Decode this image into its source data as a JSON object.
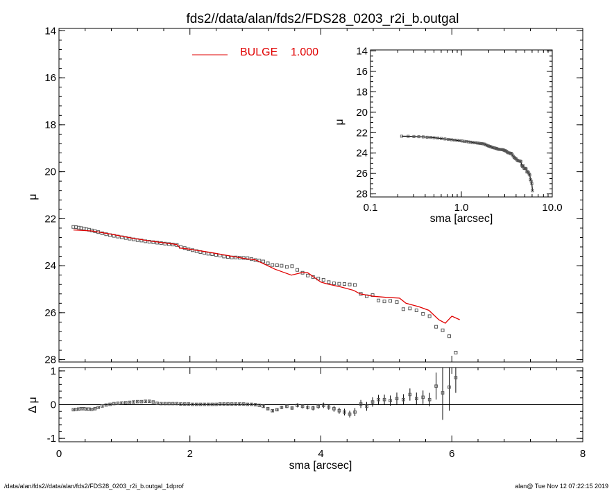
{
  "colors": {
    "model": "#e00000",
    "data": "#555555",
    "axes": "#000000"
  },
  "title": "fds2//data/alan/fds2/FDS28_0203_r2i_b.outgal",
  "legend": {
    "label": "BULGE",
    "value": "1.000"
  },
  "footer": {
    "left": "/data/alan/fds2//data/alan/fds2/FDS28_0203_r2i_b.outgal_1dprof",
    "right": "alan@  Tue Nov 12 07:22:15 2019"
  },
  "chart_data": [
    {
      "id": "main",
      "type": "scatter",
      "ylabel": "μ",
      "xlim": [
        0,
        8
      ],
      "ylim": [
        28.1,
        13.9
      ],
      "y_inverted": true,
      "xticks": [
        "0",
        "2",
        "4",
        "6",
        "8"
      ],
      "yticks": [
        "14",
        "16",
        "18",
        "20",
        "22",
        "24",
        "26",
        "28"
      ],
      "series": [
        {
          "name": "data",
          "x": [
            0.22,
            0.26,
            0.3,
            0.34,
            0.38,
            0.42,
            0.46,
            0.5,
            0.55,
            0.6,
            0.66,
            0.72,
            0.78,
            0.84,
            0.9,
            0.96,
            1.02,
            1.08,
            1.14,
            1.2,
            1.26,
            1.32,
            1.38,
            1.44,
            1.5,
            1.56,
            1.62,
            1.68,
            1.74,
            1.8,
            1.86,
            1.92,
            1.98,
            2.04,
            2.1,
            2.16,
            2.22,
            2.28,
            2.34,
            2.4,
            2.46,
            2.52,
            2.58,
            2.64,
            2.7,
            2.76,
            2.82,
            2.88,
            2.94,
            3.0,
            3.06,
            3.12,
            3.19,
            3.26,
            3.33,
            3.4,
            3.48,
            3.56,
            3.64,
            3.72,
            3.8,
            3.88,
            3.96,
            4.04,
            4.12,
            4.2,
            4.28,
            4.36,
            4.44,
            4.52,
            4.61,
            4.7,
            4.79,
            4.88,
            4.97,
            5.06,
            5.16,
            5.26,
            5.36,
            5.46,
            5.56,
            5.66,
            5.76,
            5.86,
            5.96,
            6.06
          ],
          "y": [
            22.35,
            22.36,
            22.38,
            22.4,
            22.42,
            22.45,
            22.47,
            22.5,
            22.53,
            22.57,
            22.62,
            22.66,
            22.7,
            22.73,
            22.76,
            22.79,
            22.82,
            22.85,
            22.88,
            22.91,
            22.93,
            22.96,
            22.98,
            23.0,
            23.02,
            23.04,
            23.06,
            23.08,
            23.1,
            23.12,
            23.2,
            23.25,
            23.3,
            23.34,
            23.38,
            23.42,
            23.46,
            23.49,
            23.51,
            23.54,
            23.57,
            23.61,
            23.63,
            23.65,
            23.65,
            23.66,
            23.67,
            23.68,
            23.72,
            23.76,
            23.78,
            23.82,
            23.9,
            23.97,
            23.98,
            24.0,
            24.05,
            24.02,
            24.18,
            24.3,
            24.42,
            24.48,
            24.55,
            24.6,
            24.7,
            24.75,
            24.77,
            24.78,
            24.8,
            24.82,
            25.2,
            25.3,
            25.25,
            25.48,
            25.52,
            25.5,
            25.55,
            25.85,
            25.82,
            25.9,
            26.05,
            26.15,
            26.6,
            26.75,
            27.0,
            27.7
          ],
          "dmu": [
            -0.15,
            -0.14,
            -0.13,
            -0.12,
            -0.12,
            -0.13,
            -0.13,
            -0.14,
            -0.12,
            -0.08,
            -0.04,
            -0.01,
            0.01,
            0.03,
            0.04,
            0.05,
            0.06,
            0.07,
            0.08,
            0.09,
            0.09,
            0.1,
            0.1,
            0.08,
            0.04,
            0.03,
            0.03,
            0.03,
            0.03,
            0.03,
            0.02,
            0.02,
            0.02,
            0.01,
            0.01,
            0.01,
            0.01,
            0.01,
            0.01,
            0.01,
            0.02,
            0.02,
            0.02,
            0.02,
            0.02,
            0.02,
            0.02,
            0.01,
            0.01,
            0.0,
            -0.02,
            -0.05,
            -0.12,
            -0.18,
            -0.15,
            -0.08,
            -0.05,
            -0.1,
            -0.02,
            -0.05,
            -0.08,
            -0.1,
            -0.05,
            -0.02,
            -0.07,
            -0.12,
            -0.18,
            -0.22,
            -0.28,
            -0.22,
            0.02,
            -0.05,
            0.08,
            0.15,
            0.15,
            0.12,
            0.18,
            0.15,
            0.3,
            0.18,
            0.22,
            0.15,
            0.55,
            0.35,
            0.52,
            0.8
          ],
          "dmu_err": [
            0.02,
            0.02,
            0.02,
            0.02,
            0.02,
            0.02,
            0.02,
            0.02,
            0.02,
            0.02,
            0.02,
            0.02,
            0.02,
            0.02,
            0.02,
            0.02,
            0.02,
            0.02,
            0.02,
            0.02,
            0.02,
            0.02,
            0.02,
            0.02,
            0.02,
            0.02,
            0.02,
            0.02,
            0.02,
            0.02,
            0.02,
            0.02,
            0.02,
            0.02,
            0.02,
            0.02,
            0.02,
            0.02,
            0.02,
            0.02,
            0.02,
            0.02,
            0.02,
            0.02,
            0.02,
            0.02,
            0.02,
            0.02,
            0.02,
            0.03,
            0.03,
            0.03,
            0.04,
            0.04,
            0.04,
            0.05,
            0.05,
            0.05,
            0.06,
            0.06,
            0.06,
            0.07,
            0.07,
            0.08,
            0.08,
            0.09,
            0.09,
            0.1,
            0.1,
            0.12,
            0.12,
            0.13,
            0.14,
            0.14,
            0.15,
            0.15,
            0.18,
            0.16,
            0.18,
            0.18,
            0.2,
            0.2,
            0.4,
            0.8,
            0.7,
            0.45
          ]
        },
        {
          "name": "BULGE",
          "x": [
            0.22,
            0.5,
            0.8,
            1.1,
            1.4,
            1.7,
            1.8,
            1.85,
            2.0,
            2.3,
            2.6,
            2.85,
            3.0,
            3.15,
            3.3,
            3.45,
            3.55,
            3.7,
            3.8,
            3.9,
            4.0,
            4.1,
            4.3,
            4.5,
            4.6,
            4.8,
            5.0,
            5.2,
            5.3,
            5.5,
            5.65,
            5.8,
            5.9,
            6.0,
            6.12
          ],
          "y": [
            22.48,
            22.52,
            22.66,
            22.82,
            22.95,
            23.06,
            23.1,
            23.25,
            23.3,
            23.43,
            23.58,
            23.7,
            23.75,
            23.95,
            24.15,
            24.3,
            24.4,
            24.3,
            24.3,
            24.5,
            24.7,
            24.78,
            24.9,
            25.05,
            25.2,
            25.3,
            25.35,
            25.38,
            25.6,
            25.75,
            25.9,
            26.3,
            26.45,
            26.15,
            26.3
          ]
        }
      ]
    },
    {
      "id": "residual",
      "type": "scatter",
      "ylabel": "Δ μ",
      "xlabel": "sma [arcsec]",
      "xlim": [
        0,
        8
      ],
      "ylim": [
        -1.1,
        1.1
      ],
      "yticks": [
        "-1",
        "0",
        "1"
      ],
      "xticks": [
        "0",
        "2",
        "4",
        "6",
        "8"
      ],
      "zero_line": true
    },
    {
      "id": "inset",
      "type": "line",
      "x_scale": "log",
      "xlabel": "sma [arcsec]",
      "ylabel": "μ",
      "xlim": [
        0.1,
        10.0
      ],
      "ylim": [
        28.3,
        13.9
      ],
      "y_inverted": true,
      "xticks": [
        "0.1",
        "1.0",
        "10.0"
      ],
      "yticks": [
        "14",
        "16",
        "18",
        "20",
        "22",
        "24",
        "26",
        "28"
      ]
    }
  ]
}
